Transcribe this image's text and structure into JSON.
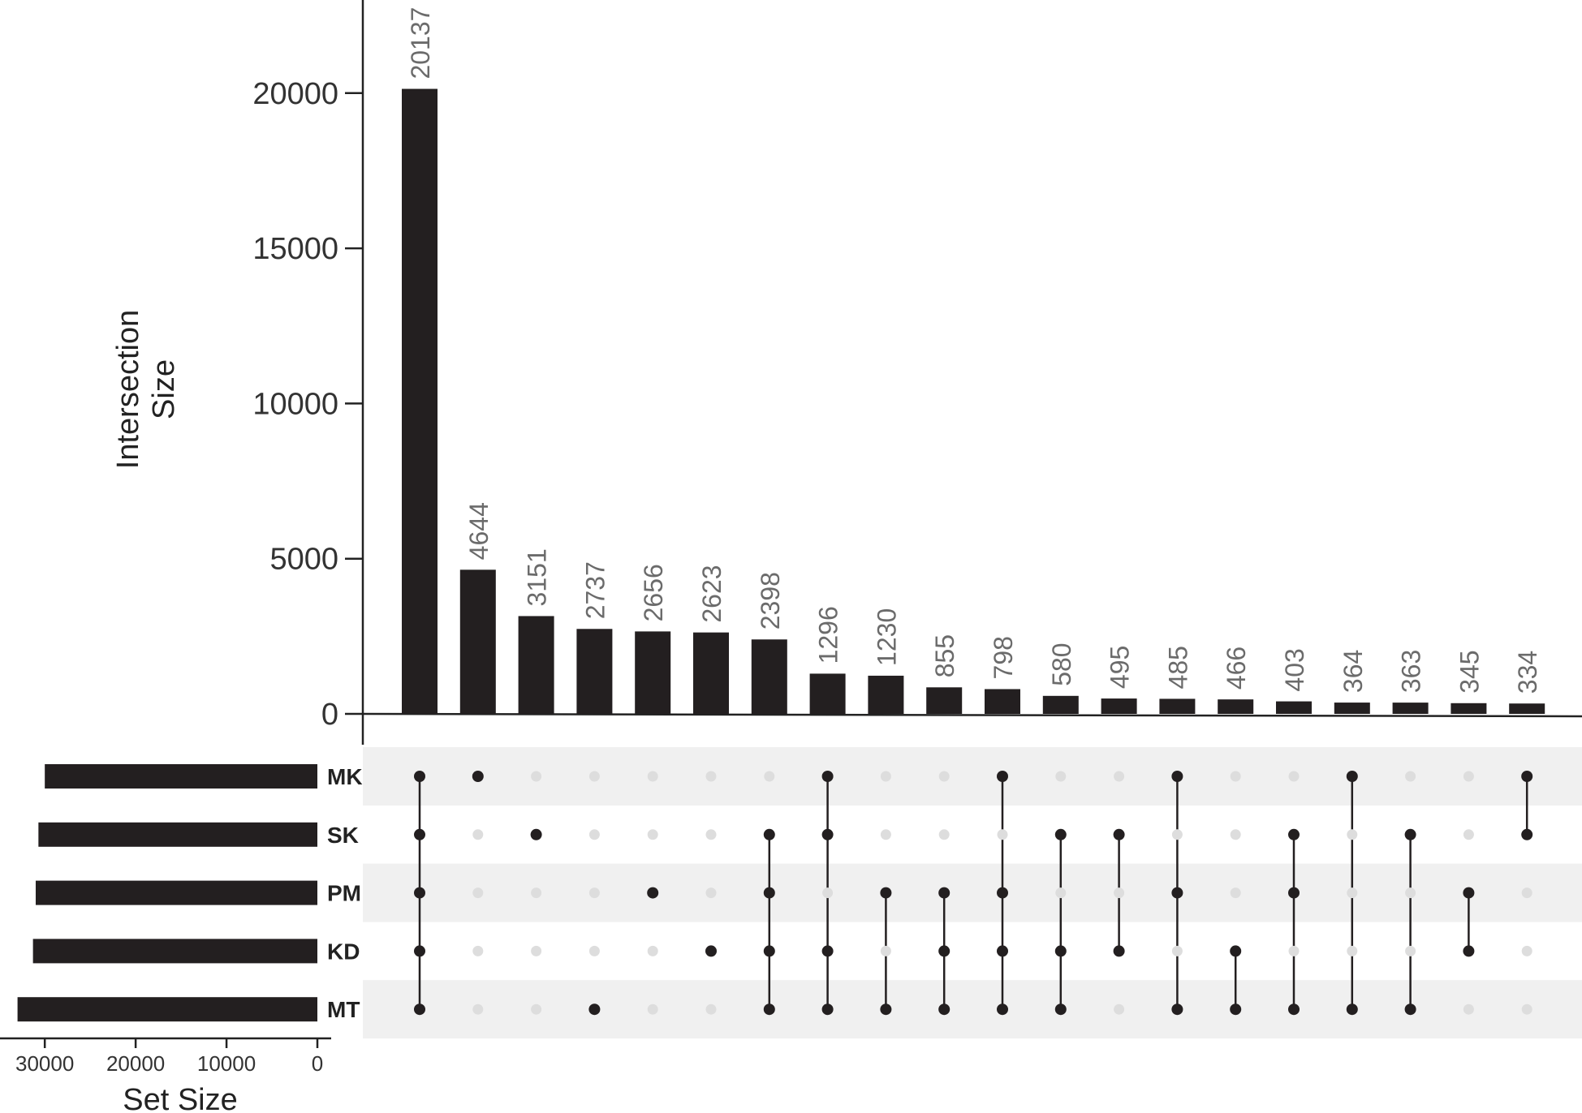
{
  "chart_data": {
    "type": "bar",
    "subtype": "upset",
    "title": "",
    "ylabel": "Intersection Size",
    "ylabel_lines": [
      "Intersection",
      "Size"
    ],
    "ylim": [
      0,
      23000
    ],
    "yticks": [
      0,
      5000,
      10000,
      15000,
      20000
    ],
    "sets": [
      "MK",
      "SK",
      "PM",
      "KD",
      "MT"
    ],
    "set_sizes": [
      30000,
      30700,
      31000,
      31300,
      33000
    ],
    "set_size_label": "Set Size",
    "set_size_ticks": [
      30000,
      20000,
      10000,
      0
    ],
    "set_size_xlim": [
      0,
      33500
    ],
    "values": [
      20137,
      4644,
      3151,
      2737,
      2656,
      2623,
      2398,
      1296,
      1230,
      855,
      798,
      580,
      495,
      485,
      466,
      403,
      364,
      363,
      345,
      334
    ],
    "membership": [
      [
        "MK",
        "SK",
        "PM",
        "KD",
        "MT"
      ],
      [
        "MK"
      ],
      [
        "SK"
      ],
      [
        "MT"
      ],
      [
        "PM"
      ],
      [
        "KD"
      ],
      [
        "SK",
        "PM",
        "KD",
        "MT"
      ],
      [
        "MK",
        "SK",
        "KD",
        "MT"
      ],
      [
        "PM",
        "MT"
      ],
      [
        "PM",
        "KD",
        "MT"
      ],
      [
        "MK",
        "PM",
        "KD",
        "MT"
      ],
      [
        "SK",
        "KD",
        "MT"
      ],
      [
        "SK",
        "KD"
      ],
      [
        "MK",
        "PM",
        "MT"
      ],
      [
        "KD",
        "MT"
      ],
      [
        "SK",
        "PM",
        "MT"
      ],
      [
        "MK",
        "MT"
      ],
      [
        "SK",
        "MT"
      ],
      [
        "PM",
        "KD"
      ],
      [
        "MK",
        "SK"
      ]
    ],
    "grid": false,
    "colors": {
      "bar": "#231f20",
      "dot_active": "#231f20",
      "dot_inactive": "#dddddd",
      "stripe": "#f0f0f0",
      "value_label": "#6b6b6b"
    }
  }
}
